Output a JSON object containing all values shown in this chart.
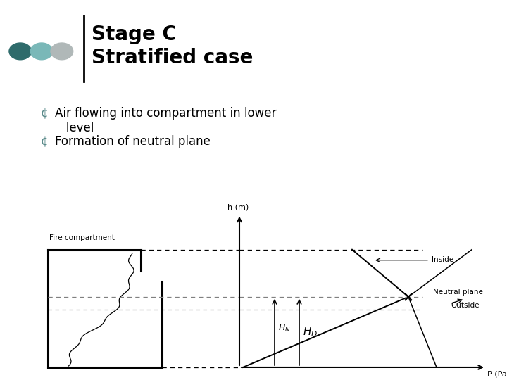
{
  "title_line1": "Stage C",
  "title_line2": "Stratified case",
  "bullet1_marker": "¢",
  "bullet1_text": "Air flowing into compartment in lower\n   level",
  "bullet2_text": "Formation of neutral plane",
  "bg_color": "#ffffff",
  "title_color": "#000000",
  "bullet_color": "#000000",
  "dot_colors": [
    "#2e6b6b",
    "#7ab8b8",
    "#b0b8b8"
  ],
  "bullet_marker_color": "#5a8a8a",
  "divider_color": "#000000",
  "title_fontsize": 20,
  "bullet_fontsize": 12
}
